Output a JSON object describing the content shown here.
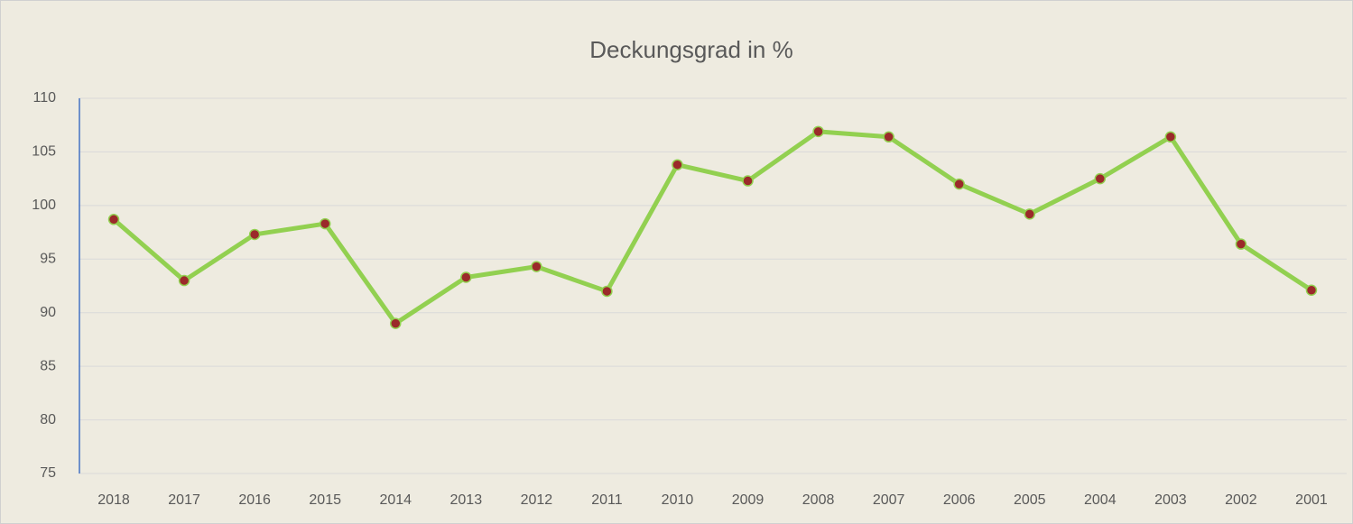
{
  "chart_data": {
    "type": "line",
    "title": "Deckungsgrad in %",
    "categories": [
      "2018",
      "2017",
      "2016",
      "2015",
      "2014",
      "2013",
      "2012",
      "2011",
      "2010",
      "2009",
      "2008",
      "2007",
      "2006",
      "2005",
      "2004",
      "2003",
      "2002",
      "2001"
    ],
    "series": [
      {
        "name": "Deckungsgrad",
        "color": "#92d050",
        "marker_color": "#9b2a2a",
        "values": [
          98.7,
          93.0,
          97.3,
          98.3,
          89.0,
          93.3,
          94.3,
          92.0,
          103.8,
          102.3,
          106.9,
          106.4,
          102.0,
          99.2,
          102.5,
          106.4,
          96.4,
          92.1
        ]
      }
    ],
    "ylim": [
      75,
      110
    ],
    "yticks": [
      75,
      80,
      85,
      90,
      95,
      100,
      105,
      110
    ],
    "grid": true
  }
}
